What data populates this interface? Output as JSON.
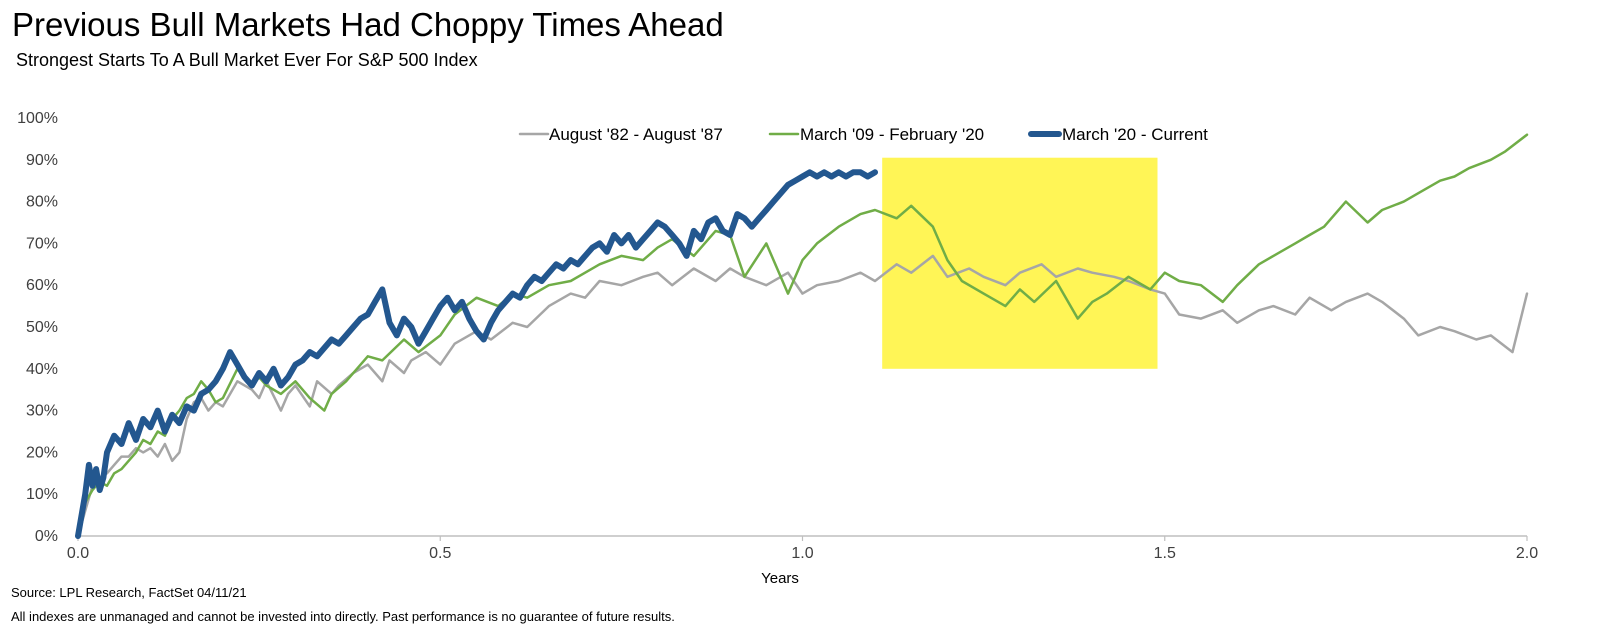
{
  "header": {
    "title": "Previous Bull Markets Had Choppy Times Ahead",
    "subtitle": "Strongest Starts To A Bull Market Ever For S&P 500 Index"
  },
  "footer": {
    "source": "Source: LPL Research, FactSet 04/11/21",
    "disclaimer": "All indexes are unmanaged and cannot be invested into directly. Past performance is no guarantee of future results."
  },
  "chart_data": {
    "type": "line",
    "title": "Previous Bull Markets Had Choppy Times Ahead",
    "subtitle": "Strongest Starts To A Bull Market Ever For S&P 500 Index",
    "xlabel": "Years",
    "ylabel": "",
    "xlim": [
      0,
      2.0
    ],
    "ylim": [
      0,
      100
    ],
    "x_ticks": [
      0.0,
      0.5,
      1.0,
      1.5,
      2.0
    ],
    "x_tick_labels": [
      "0.0",
      "0.5",
      "1.0",
      "1.5",
      "2.0"
    ],
    "y_ticks": [
      0,
      10,
      20,
      30,
      40,
      50,
      60,
      70,
      80,
      90,
      100
    ],
    "y_tick_labels": [
      "0%",
      "10%",
      "20%",
      "30%",
      "40%",
      "50%",
      "60%",
      "70%",
      "80%",
      "90%",
      "100%"
    ],
    "grid": false,
    "legend_position": "top",
    "highlight_box": {
      "x_range": [
        1.11,
        1.49
      ],
      "y_range": [
        40,
        90.5
      ],
      "color": "#FFF556"
    },
    "series": [
      {
        "name": "August '82 - August '87",
        "color": "#A6A6A6",
        "line_width": 2.5,
        "x": [
          0,
          0.01,
          0.02,
          0.03,
          0.04,
          0.05,
          0.06,
          0.07,
          0.08,
          0.09,
          0.1,
          0.11,
          0.12,
          0.13,
          0.14,
          0.15,
          0.16,
          0.17,
          0.18,
          0.19,
          0.2,
          0.22,
          0.24,
          0.25,
          0.26,
          0.28,
          0.29,
          0.3,
          0.32,
          0.33,
          0.35,
          0.36,
          0.38,
          0.4,
          0.42,
          0.43,
          0.45,
          0.46,
          0.48,
          0.5,
          0.52,
          0.55,
          0.57,
          0.6,
          0.62,
          0.65,
          0.68,
          0.7,
          0.72,
          0.75,
          0.78,
          0.8,
          0.82,
          0.85,
          0.88,
          0.9,
          0.92,
          0.95,
          0.98,
          1.0,
          1.02,
          1.05,
          1.08,
          1.1,
          1.13,
          1.15,
          1.18,
          1.2,
          1.23,
          1.25,
          1.28,
          1.3,
          1.33,
          1.35,
          1.38,
          1.4,
          1.43,
          1.45,
          1.48,
          1.5,
          1.52,
          1.55,
          1.58,
          1.6,
          1.63,
          1.65,
          1.68,
          1.7,
          1.73,
          1.75,
          1.78,
          1.8,
          1.83,
          1.85,
          1.88,
          1.9,
          1.93,
          1.95,
          1.98,
          2.0
        ],
        "y": [
          0,
          6,
          12,
          14,
          15,
          17,
          19,
          19,
          21,
          20,
          21,
          19,
          22,
          18,
          20,
          28,
          32,
          33,
          30,
          32,
          31,
          37,
          35,
          33,
          37,
          30,
          34,
          36,
          31,
          37,
          34,
          36,
          39,
          41,
          37,
          42,
          39,
          42,
          44,
          41,
          46,
          49,
          47,
          51,
          50,
          55,
          58,
          57,
          61,
          60,
          62,
          63,
          60,
          64,
          61,
          64,
          62,
          60,
          63,
          58,
          60,
          61,
          63,
          61,
          65,
          63,
          67,
          62,
          64,
          62,
          60,
          63,
          65,
          62,
          64,
          63,
          62,
          61,
          59,
          58,
          53,
          52,
          54,
          51,
          54,
          55,
          53,
          57,
          54,
          56,
          58,
          56,
          52,
          48,
          50,
          49,
          47,
          48,
          44,
          58
        ]
      },
      {
        "name": "March '09 - February '20",
        "color": "#70AD47",
        "line_width": 2.5,
        "x": [
          0,
          0.01,
          0.02,
          0.03,
          0.04,
          0.05,
          0.06,
          0.07,
          0.08,
          0.09,
          0.1,
          0.11,
          0.12,
          0.13,
          0.14,
          0.15,
          0.16,
          0.17,
          0.18,
          0.19,
          0.2,
          0.22,
          0.24,
          0.25,
          0.26,
          0.28,
          0.3,
          0.32,
          0.34,
          0.35,
          0.37,
          0.4,
          0.42,
          0.45,
          0.47,
          0.5,
          0.52,
          0.55,
          0.58,
          0.6,
          0.62,
          0.65,
          0.68,
          0.7,
          0.72,
          0.75,
          0.78,
          0.8,
          0.82,
          0.85,
          0.88,
          0.9,
          0.92,
          0.95,
          0.98,
          1.0,
          1.02,
          1.05,
          1.08,
          1.1,
          1.13,
          1.15,
          1.18,
          1.2,
          1.22,
          1.25,
          1.28,
          1.3,
          1.32,
          1.35,
          1.38,
          1.4,
          1.42,
          1.45,
          1.48,
          1.5,
          1.52,
          1.55,
          1.58,
          1.6,
          1.63,
          1.65,
          1.68,
          1.7,
          1.72,
          1.75,
          1.78,
          1.8,
          1.83,
          1.85,
          1.88,
          1.9,
          1.92,
          1.95,
          1.97,
          2.0
        ],
        "y": [
          0,
          8,
          11,
          13,
          12,
          15,
          16,
          18,
          20,
          23,
          22,
          25,
          24,
          28,
          30,
          33,
          34,
          37,
          35,
          32,
          33,
          40,
          36,
          38,
          36,
          34,
          37,
          33,
          30,
          34,
          37,
          43,
          42,
          47,
          44,
          48,
          53,
          57,
          55,
          58,
          57,
          60,
          61,
          63,
          65,
          67,
          66,
          69,
          71,
          67,
          73,
          72,
          62,
          70,
          58,
          66,
          70,
          74,
          77,
          78,
          76,
          79,
          74,
          66,
          61,
          58,
          55,
          59,
          56,
          61,
          52,
          56,
          58,
          62,
          59,
          63,
          61,
          60,
          56,
          60,
          65,
          67,
          70,
          72,
          74,
          80,
          75,
          78,
          80,
          82,
          85,
          86,
          88,
          90,
          92,
          96
        ]
      },
      {
        "name": "March '20 - Current",
        "color": "#23578F",
        "line_width": 6,
        "x": [
          0,
          0.01,
          0.015,
          0.02,
          0.025,
          0.03,
          0.035,
          0.04,
          0.05,
          0.06,
          0.07,
          0.08,
          0.09,
          0.1,
          0.11,
          0.12,
          0.13,
          0.14,
          0.15,
          0.16,
          0.17,
          0.18,
          0.19,
          0.2,
          0.21,
          0.22,
          0.23,
          0.24,
          0.25,
          0.26,
          0.27,
          0.28,
          0.29,
          0.3,
          0.31,
          0.32,
          0.33,
          0.34,
          0.35,
          0.36,
          0.37,
          0.38,
          0.39,
          0.4,
          0.41,
          0.42,
          0.43,
          0.44,
          0.45,
          0.46,
          0.47,
          0.48,
          0.49,
          0.5,
          0.51,
          0.52,
          0.53,
          0.54,
          0.55,
          0.56,
          0.57,
          0.58,
          0.59,
          0.6,
          0.61,
          0.62,
          0.63,
          0.64,
          0.65,
          0.66,
          0.67,
          0.68,
          0.69,
          0.7,
          0.71,
          0.72,
          0.73,
          0.74,
          0.75,
          0.76,
          0.77,
          0.78,
          0.79,
          0.8,
          0.81,
          0.82,
          0.83,
          0.84,
          0.85,
          0.86,
          0.87,
          0.88,
          0.89,
          0.9,
          0.91,
          0.92,
          0.93,
          0.94,
          0.95,
          0.96,
          0.97,
          0.98,
          0.99,
          1.0,
          1.01,
          1.02,
          1.03,
          1.04,
          1.05,
          1.06,
          1.07,
          1.08,
          1.09,
          1.1
        ],
        "y": [
          0,
          10,
          17,
          12,
          16,
          11,
          14,
          20,
          24,
          22,
          27,
          23,
          28,
          26,
          30,
          25,
          29,
          27,
          31,
          30,
          34,
          35,
          37,
          40,
          44,
          41,
          38,
          36,
          39,
          37,
          40,
          36,
          38,
          41,
          42,
          44,
          43,
          45,
          47,
          46,
          48,
          50,
          52,
          53,
          56,
          59,
          51,
          48,
          52,
          50,
          46,
          49,
          52,
          55,
          57,
          54,
          56,
          52,
          49,
          47,
          51,
          54,
          56,
          58,
          57,
          60,
          62,
          61,
          63,
          65,
          64,
          66,
          65,
          67,
          69,
          70,
          68,
          72,
          70,
          72,
          69,
          71,
          73,
          75,
          74,
          72,
          70,
          67,
          73,
          71,
          75,
          76,
          73,
          72,
          77,
          76,
          74,
          76,
          78,
          80,
          82,
          84,
          85,
          86,
          87,
          86,
          87,
          86,
          87,
          86,
          87,
          87,
          86,
          87
        ]
      }
    ]
  }
}
